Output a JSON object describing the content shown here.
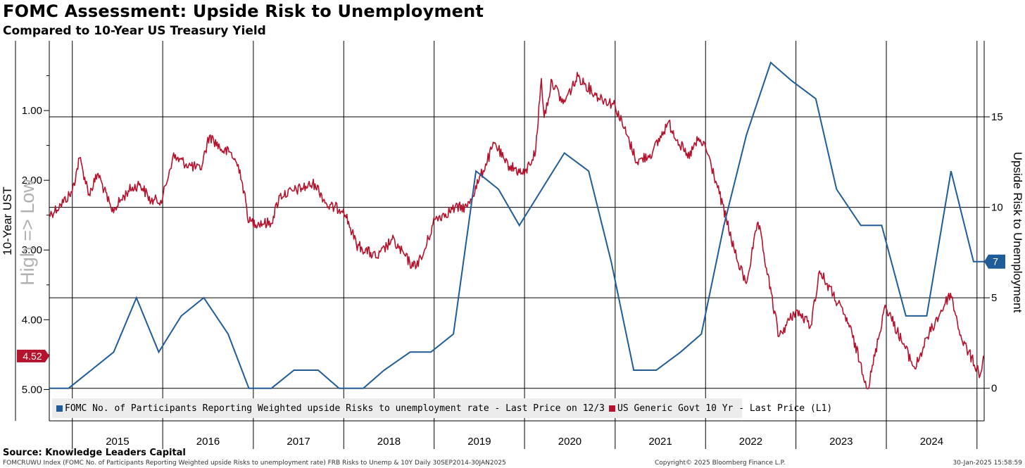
{
  "header": {
    "title": "FOMC Assessment: Upside Risk to Unemployment",
    "subtitle": "Compared to 10-Year US Treasury Yield"
  },
  "footer": {
    "source": "Source: Knowledge Leaders Capital",
    "index_note": "FOMCRUWU Index (FOMC No. of Participants Reporting Weighted upside Risks to unemployment rate) FRB Risks to Unemp & 10Y  Daily 30SEP2014-30JAN2025",
    "copyright": "Copyright© 2025 Bloomberg Finance L.P.",
    "timestamp": "30-Jan-2025 15:58:59"
  },
  "colors": {
    "blue": "#1f5c99",
    "red": "#b5122d",
    "grid": "#000000",
    "legend_bg": "#ececec",
    "watermark": "#b0b0b0"
  },
  "chart_data": {
    "type": "line",
    "x_range": [
      "2014-09-30",
      "2025-01-30"
    ],
    "x_ticks": [
      "2015",
      "2016",
      "2017",
      "2018",
      "2019",
      "2020",
      "2021",
      "2022",
      "2023",
      "2024"
    ],
    "left_axis": {
      "label": "10-Year UST",
      "watermark": "High => Low",
      "inverted": true,
      "range": [
        0.0,
        5.45
      ],
      "ticks": [
        "1.00",
        "2.00",
        "3.00",
        "4.00",
        "5.00"
      ],
      "last_value_label": "4.52"
    },
    "right_axis": {
      "label": "Upside Risk to Unemployment",
      "range": [
        -1.8,
        19.2
      ],
      "ticks": [
        "0",
        "5",
        "10",
        "15"
      ],
      "last_value_label": "7"
    },
    "series": [
      {
        "name": "FOMC No. of Participants Reporting Weighted upside Risks to unemployment rate - Last Price on 12/3",
        "axis": "right",
        "color": "#1f5c99",
        "points": [
          [
            "2014-09-30",
            0
          ],
          [
            "2014-12-17",
            0
          ],
          [
            "2015-03-18",
            1
          ],
          [
            "2015-06-17",
            2
          ],
          [
            "2015-09-17",
            5
          ],
          [
            "2015-12-16",
            2
          ],
          [
            "2016-03-16",
            4
          ],
          [
            "2016-06-15",
            5
          ],
          [
            "2016-09-21",
            3
          ],
          [
            "2016-12-14",
            0
          ],
          [
            "2017-03-15",
            0
          ],
          [
            "2017-06-14",
            1
          ],
          [
            "2017-09-20",
            1
          ],
          [
            "2017-12-13",
            0
          ],
          [
            "2018-03-21",
            0
          ],
          [
            "2018-06-13",
            1
          ],
          [
            "2018-09-26",
            2
          ],
          [
            "2018-12-19",
            2
          ],
          [
            "2019-03-20",
            3
          ],
          [
            "2019-06-19",
            12
          ],
          [
            "2019-09-18",
            11
          ],
          [
            "2019-12-11",
            9
          ],
          [
            "2020-06-10",
            13
          ],
          [
            "2020-09-16",
            12
          ],
          [
            "2020-12-16",
            7
          ],
          [
            "2021-03-17",
            1
          ],
          [
            "2021-06-16",
            1
          ],
          [
            "2021-09-22",
            2
          ],
          [
            "2021-12-15",
            3
          ],
          [
            "2022-03-16",
            9
          ],
          [
            "2022-06-15",
            14
          ],
          [
            "2022-09-21",
            18
          ],
          [
            "2022-12-14",
            17
          ],
          [
            "2023-03-22",
            16
          ],
          [
            "2023-06-14",
            11
          ],
          [
            "2023-09-20",
            9
          ],
          [
            "2023-12-13",
            9
          ],
          [
            "2024-03-20",
            4
          ],
          [
            "2024-06-12",
            4
          ],
          [
            "2024-09-18",
            12
          ],
          [
            "2024-12-18",
            7
          ],
          [
            "2025-01-30",
            7
          ]
        ]
      },
      {
        "name": "US Generic Govt 10 Yr - Last Price (L1)",
        "axis": "left",
        "color": "#b5122d",
        "points": [
          [
            "2014-09-30",
            2.5
          ],
          [
            "2014-11-15",
            2.35
          ],
          [
            "2014-12-31",
            2.17
          ],
          [
            "2015-01-30",
            1.68
          ],
          [
            "2015-03-10",
            2.2
          ],
          [
            "2015-04-15",
            1.9
          ],
          [
            "2015-06-10",
            2.45
          ],
          [
            "2015-08-15",
            2.15
          ],
          [
            "2015-10-01",
            2.05
          ],
          [
            "2015-11-15",
            2.3
          ],
          [
            "2015-12-31",
            2.27
          ],
          [
            "2016-02-11",
            1.66
          ],
          [
            "2016-04-15",
            1.78
          ],
          [
            "2016-06-01",
            1.85
          ],
          [
            "2016-07-08",
            1.36
          ],
          [
            "2016-09-01",
            1.58
          ],
          [
            "2016-10-01",
            1.6
          ],
          [
            "2016-11-08",
            1.85
          ],
          [
            "2016-12-15",
            2.6
          ],
          [
            "2017-03-13",
            2.62
          ],
          [
            "2017-04-18",
            2.22
          ],
          [
            "2017-06-15",
            2.15
          ],
          [
            "2017-09-07",
            2.05
          ],
          [
            "2017-10-31",
            2.38
          ],
          [
            "2017-12-31",
            2.41
          ],
          [
            "2018-02-21",
            2.92
          ],
          [
            "2018-05-17",
            3.11
          ],
          [
            "2018-07-15",
            2.85
          ],
          [
            "2018-10-08",
            3.24
          ],
          [
            "2018-11-15",
            3.1
          ],
          [
            "2019-01-03",
            2.56
          ],
          [
            "2019-03-25",
            2.4
          ],
          [
            "2019-05-15",
            2.38
          ],
          [
            "2019-07-01",
            2.0
          ],
          [
            "2019-09-03",
            1.46
          ],
          [
            "2019-10-15",
            1.75
          ],
          [
            "2019-12-31",
            1.92
          ],
          [
            "2020-02-15",
            1.58
          ],
          [
            "2020-03-09",
            0.54
          ],
          [
            "2020-03-20",
            1.1
          ],
          [
            "2020-04-21",
            0.57
          ],
          [
            "2020-06-05",
            0.9
          ],
          [
            "2020-08-04",
            0.51
          ],
          [
            "2020-10-15",
            0.78
          ],
          [
            "2020-12-31",
            0.92
          ],
          [
            "2021-03-31",
            1.74
          ],
          [
            "2021-06-01",
            1.6
          ],
          [
            "2021-08-03",
            1.17
          ],
          [
            "2021-10-21",
            1.68
          ],
          [
            "2021-12-01",
            1.43
          ],
          [
            "2021-12-31",
            1.51
          ],
          [
            "2022-02-15",
            2.05
          ],
          [
            "2022-05-06",
            3.12
          ],
          [
            "2022-06-14",
            3.48
          ],
          [
            "2022-08-01",
            2.6
          ],
          [
            "2022-10-24",
            4.24
          ],
          [
            "2022-12-31",
            3.87
          ],
          [
            "2023-03-02",
            4.08
          ],
          [
            "2023-04-06",
            3.3
          ],
          [
            "2023-05-31",
            3.64
          ],
          [
            "2023-08-01",
            4.05
          ],
          [
            "2023-10-19",
            4.99
          ],
          [
            "2023-12-27",
            3.79
          ],
          [
            "2024-04-25",
            4.7
          ],
          [
            "2024-06-15",
            4.25
          ],
          [
            "2024-09-16",
            3.62
          ],
          [
            "2024-10-31",
            4.28
          ],
          [
            "2025-01-14",
            4.79
          ],
          [
            "2025-01-30",
            4.52
          ]
        ]
      }
    ],
    "legend": "bottom-left",
    "grid": true
  }
}
